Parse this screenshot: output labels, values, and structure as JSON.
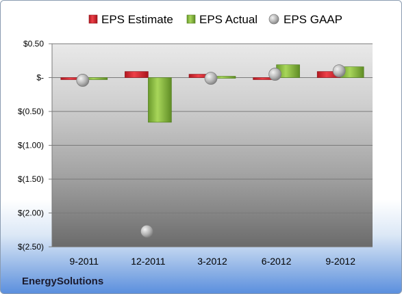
{
  "company": "EnergySolutions",
  "chart_data": {
    "type": "bar",
    "categories": [
      "9-2011",
      "12-2011",
      "3-2012",
      "6-2012",
      "9-2012"
    ],
    "series": [
      {
        "name": "EPS Estimate",
        "type": "bar",
        "color": "#d9262e",
        "values": [
          0.0,
          0.09,
          0.05,
          -0.02,
          0.09
        ]
      },
      {
        "name": "EPS Actual",
        "type": "bar",
        "color": "#8dc63f",
        "values": [
          -0.03,
          -0.66,
          0.02,
          0.19,
          0.16
        ]
      },
      {
        "name": "EPS GAAP",
        "type": "scatter",
        "color": "#a9a9a9",
        "values": [
          -0.04,
          -2.27,
          -0.01,
          0.05,
          0.1
        ]
      }
    ],
    "yticks": [
      {
        "value": 0.5,
        "label": "$0.50"
      },
      {
        "value": 0.0,
        "label": "$-"
      },
      {
        "value": -0.5,
        "label": "$(0.50)"
      },
      {
        "value": -1.0,
        "label": "$(1.00)"
      },
      {
        "value": -1.5,
        "label": "$(1.50)"
      },
      {
        "value": -2.0,
        "label": "$(2.00)"
      },
      {
        "value": -2.5,
        "label": "$(2.50)"
      }
    ],
    "ylim": [
      -2.5,
      0.5
    ],
    "grid": true,
    "legend": "top"
  }
}
